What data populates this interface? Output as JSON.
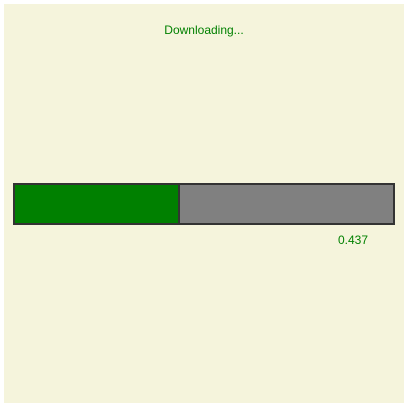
{
  "status": {
    "label": "Downloading..."
  },
  "progress": {
    "value": 0.437,
    "value_label": "0.437"
  },
  "colors": {
    "background": "#f5f4dc",
    "fill": "#008000",
    "track": "#808080",
    "border": "#333333",
    "text": "#008000"
  }
}
